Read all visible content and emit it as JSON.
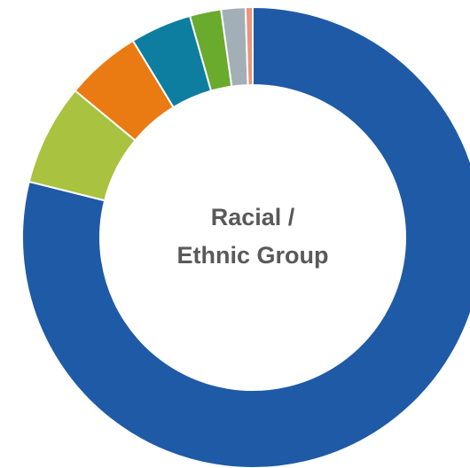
{
  "chart_data": {
    "type": "donut",
    "title": [
      "Racial /",
      "Ethnic Group"
    ],
    "values": [
      78.9,
      7.1,
      5.3,
      4.3,
      2.2,
      1.7,
      0.5
    ],
    "colors": [
      "#1f5aa6",
      "#a9c23f",
      "#ea7a12",
      "#0e7ea0",
      "#6aaa2c",
      "#a3afb6",
      "#e9967a"
    ]
  }
}
